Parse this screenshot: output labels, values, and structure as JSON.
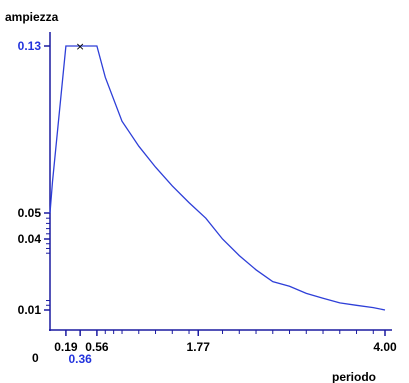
{
  "chart_data": {
    "type": "line",
    "xlabel": "periodo",
    "ylabel": "ampiezza",
    "origin_label": "0",
    "xlim": [
      0,
      4.0
    ],
    "x": [
      0.0,
      0.03,
      0.19,
      0.36,
      0.56,
      0.66,
      0.86,
      1.06,
      1.26,
      1.46,
      1.66,
      1.86,
      2.06,
      2.26,
      2.46,
      2.66,
      2.86,
      3.06,
      3.26,
      3.46,
      3.66,
      3.86,
      4.0
    ],
    "y": [
      0.05,
      0.065,
      0.13,
      0.13,
      0.13,
      0.115,
      0.094,
      0.082,
      0.072,
      0.063,
      0.055,
      0.048,
      0.04,
      0.033,
      0.027,
      0.022,
      0.02,
      0.017,
      0.015,
      0.013,
      0.012,
      0.011,
      0.01
    ],
    "x_ticks": [
      {
        "value": 0.19,
        "label": "0.19"
      },
      {
        "value": 0.36,
        "label": "0.36",
        "highlight": true
      },
      {
        "value": 0.56,
        "label": "0.56"
      },
      {
        "value": 1.77,
        "label": "1.77"
      },
      {
        "value": 4.0,
        "label": "4.00"
      }
    ],
    "x_minor_ticks": [
      0.66,
      0.76,
      0.86,
      1.06,
      1.26,
      1.46,
      1.66,
      2.06,
      2.26,
      2.46,
      2.66,
      2.86,
      3.06,
      3.26,
      3.46,
      3.66,
      3.86
    ],
    "y_ticks": [
      {
        "value": 0.13,
        "label": "0.13",
        "highlight": true
      },
      {
        "value": 0.05,
        "label": "0.05"
      },
      {
        "value": 0.04,
        "label": "0.04"
      },
      {
        "value": 0.01,
        "label": "0.01"
      }
    ],
    "y_minor_ticks": [
      0.048,
      0.046,
      0.044,
      0.042,
      0.038,
      0.036,
      0.034,
      0.012,
      0.014
    ],
    "peak_marker": {
      "x": 0.36,
      "y": 0.13,
      "symbol": "×"
    },
    "colors": {
      "line": "#2e3fd8",
      "axis": "#1a1aa0",
      "highlight_label": "#2233dd",
      "text": "#000000"
    }
  }
}
